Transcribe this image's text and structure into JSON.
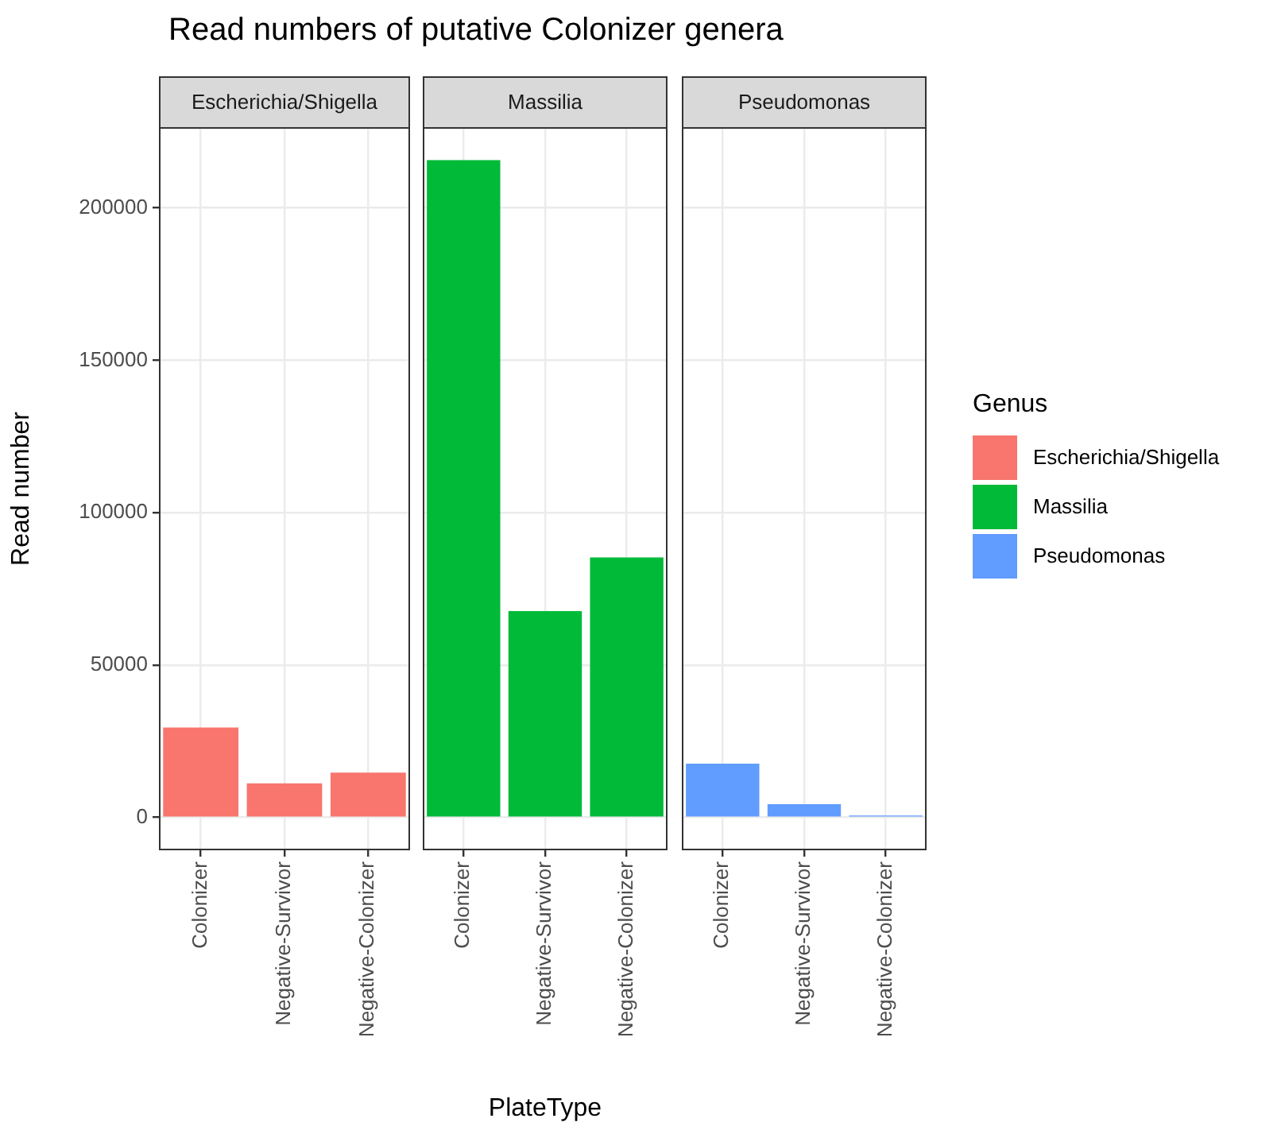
{
  "chart_data": [
    {
      "type": "bar",
      "title": "Read numbers of putative Colonizer genera",
      "subtitle": "Escherichia/Shigella",
      "ylabel": "Read number",
      "categories": [
        "Colonizer",
        "Negative-Survivor",
        "Negative-Colonizer"
      ],
      "series": [
        {
          "name": "Escherichia/Shigella",
          "color": "#f8766d",
          "values": [
            29500,
            11200,
            14700
          ]
        }
      ],
      "ylim": [
        -10800,
        226500
      ],
      "yticks": [
        0,
        50000,
        100000,
        150000,
        200000
      ],
      "grid": true,
      "legend": "right",
      "legend_title": "Genus"
    },
    {
      "type": "bar",
      "subtitle": "Massilia",
      "xlabel": "PlateType",
      "categories": [
        "Colonizer",
        "Negative-Survivor",
        "Negative-Colonizer"
      ],
      "series": [
        {
          "name": "Massilia",
          "color": "#00ba38",
          "values": [
            215700,
            67700,
            85300
          ]
        }
      ],
      "ylim": [
        -10800,
        226500
      ],
      "yticks": [
        0,
        50000,
        100000,
        150000,
        200000
      ],
      "grid": true,
      "legend": "right",
      "tick_labels": "x"
    },
    {
      "type": "bar",
      "subtitle": "Pseudomonas",
      "categories": [
        "Colonizer",
        "Negative-Survivor",
        "Negative-Colonizer"
      ],
      "series": [
        {
          "name": "Pseudomonas",
          "color": "#619cff",
          "values": [
            17600,
            4300,
            600
          ]
        }
      ],
      "ylim": [
        -10800,
        226500
      ],
      "yticks": [
        0,
        50000,
        100000,
        150000,
        200000
      ],
      "grid": true,
      "legend": "right",
      "tick_labels": "x"
    }
  ]
}
